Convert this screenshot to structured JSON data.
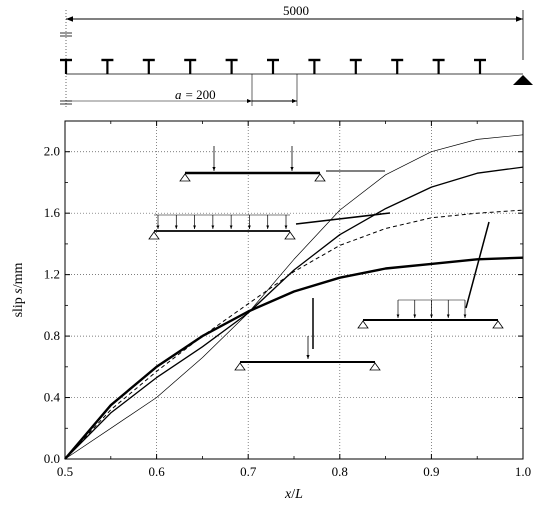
{
  "beam_schematic": {
    "span_label": "5000",
    "spacing_label_prefix": "a",
    "spacing_label_value": "= 200",
    "connector_count": 11
  },
  "chart_data": {
    "type": "line",
    "xlabel_var": "x",
    "xlabel_sep": "/",
    "xlabel_unit": "L",
    "ylabel_prefix": "slip ",
    "ylabel_var": "s",
    "ylabel_unit": "/mm",
    "xlim": [
      0.5,
      1.0
    ],
    "ylim": [
      0.0,
      2.2
    ],
    "x_ticks": [
      0.5,
      0.6,
      0.7,
      0.8,
      0.9,
      1.0
    ],
    "x_tick_labels": [
      "0.5",
      "0.6",
      "0.7",
      "0.8",
      "0.9",
      "1.0"
    ],
    "y_ticks": [
      0.0,
      0.4,
      0.8,
      1.2,
      1.6,
      2.0
    ],
    "y_tick_labels": [
      "0.0",
      "0.4",
      "0.8",
      "1.2",
      "1.6",
      "2.0"
    ],
    "grid": true,
    "series": [
      {
        "load_case": "single-point-load-at-midspan",
        "style": "thick-solid",
        "x": [
          0.5,
          0.55,
          0.6,
          0.65,
          0.7,
          0.75,
          0.8,
          0.85,
          0.9,
          0.95,
          1.0
        ],
        "y": [
          0.0,
          0.35,
          0.6,
          0.8,
          0.96,
          1.09,
          1.18,
          1.24,
          1.27,
          1.3,
          1.31
        ]
      },
      {
        "load_case": "partial-distributed-load",
        "style": "dashed",
        "x": [
          0.5,
          0.55,
          0.6,
          0.65,
          0.7,
          0.75,
          0.8,
          0.85,
          0.9,
          0.95,
          1.0
        ],
        "y": [
          0.0,
          0.32,
          0.57,
          0.8,
          1.01,
          1.22,
          1.39,
          1.5,
          1.57,
          1.6,
          1.62
        ]
      },
      {
        "load_case": "full-distributed-load",
        "style": "medium-solid",
        "x": [
          0.5,
          0.55,
          0.6,
          0.65,
          0.7,
          0.75,
          0.8,
          0.85,
          0.9,
          0.95,
          1.0
        ],
        "y": [
          0.0,
          0.3,
          0.53,
          0.73,
          0.95,
          1.23,
          1.46,
          1.63,
          1.77,
          1.86,
          1.9
        ]
      },
      {
        "load_case": "two-point-loads",
        "style": "thin-solid",
        "x": [
          0.5,
          0.55,
          0.6,
          0.65,
          0.7,
          0.75,
          0.8,
          0.85,
          0.9,
          0.95,
          1.0
        ],
        "y": [
          0.0,
          0.2,
          0.4,
          0.66,
          0.95,
          1.3,
          1.62,
          1.85,
          2.0,
          2.08,
          2.11
        ]
      }
    ]
  }
}
